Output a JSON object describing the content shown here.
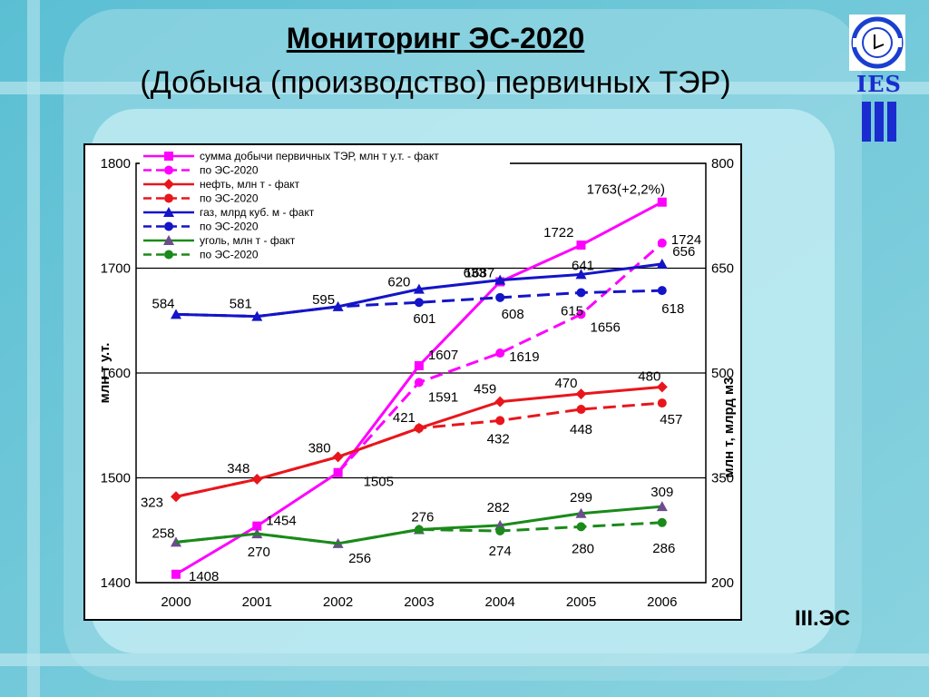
{
  "page": {
    "title": "Мониторинг ЭС-2020",
    "subtitle": "(Добыча (производство) первичных ТЭР)",
    "footer_label": "III.ЭС",
    "logo_text": "IES"
  },
  "colors": {
    "magenta": "#ff00ff",
    "red": "#e8161c",
    "blue": "#1414c8",
    "green": "#1a8a1a",
    "triangle_purple": "#6b4d8c"
  },
  "chart_data": {
    "type": "line",
    "categories": [
      "2000",
      "2001",
      "2002",
      "2003",
      "2004",
      "2005",
      "2006"
    ],
    "y_left": {
      "label": "млн т у.т.",
      "ylim": [
        1400,
        1800
      ],
      "ticks": [
        "1400",
        "1500",
        "1600",
        "1700",
        "1800"
      ]
    },
    "y_right": {
      "label": "млн т, млрд м3",
      "ylim": [
        200,
        800
      ],
      "ticks": [
        "200",
        "350",
        "500",
        "650",
        "800"
      ]
    },
    "grid": "horizontal",
    "legend_position": "top",
    "series": [
      {
        "name": "сумма добычи первичных ТЭР, млн т у.т. - факт",
        "axis": "left",
        "color": "#ff00ff",
        "dash": false,
        "marker": "square",
        "values": [
          1408,
          1454,
          1505,
          1607,
          1687,
          1722,
          1763
        ],
        "labels": [
          "1408",
          "1454",
          "1505",
          "1607",
          "1687",
          "1722",
          "1763(+2,2%)"
        ]
      },
      {
        "name": "по ЭС-2020",
        "axis": "left",
        "color": "#ff00ff",
        "dash": true,
        "marker": "circle",
        "values": [
          null,
          null,
          1505,
          1591,
          1619,
          1656,
          1724
        ],
        "labels": [
          null,
          null,
          null,
          "1591",
          "1619",
          "1656",
          "1724"
        ]
      },
      {
        "name": "нефть, млн т - факт",
        "axis": "right",
        "color": "#e8161c",
        "dash": false,
        "marker": "diamond",
        "values": [
          323,
          348,
          380,
          421,
          459,
          470,
          480
        ],
        "labels": [
          "323",
          "348",
          "380",
          "421",
          "459",
          "470",
          "480"
        ]
      },
      {
        "name": "по ЭС-2020",
        "axis": "right",
        "color": "#e8161c",
        "dash": true,
        "marker": "circle",
        "values": [
          323,
          348,
          380,
          421,
          432,
          448,
          457
        ],
        "labels": [
          null,
          null,
          null,
          null,
          "432",
          "448",
          "457"
        ]
      },
      {
        "name": "газ, млрд куб. м - факт",
        "axis": "right",
        "color": "#1414c8",
        "dash": false,
        "marker": "triangle",
        "values": [
          584,
          581,
          595,
          620,
          633,
          641,
          656
        ],
        "labels": [
          "584",
          "581",
          "595",
          "620",
          "633",
          "641",
          "656"
        ]
      },
      {
        "name": "по ЭС-2020",
        "axis": "right",
        "color": "#1414c8",
        "dash": true,
        "marker": "circle",
        "values": [
          584,
          581,
          595,
          601,
          608,
          615,
          618
        ],
        "labels": [
          null,
          null,
          null,
          "601",
          "608",
          "615",
          "618"
        ]
      },
      {
        "name": "уголь, млн т - факт",
        "axis": "right",
        "color": "#1a8a1a",
        "dash": false,
        "marker": "triangle-purple",
        "values": [
          258,
          270,
          256,
          276,
          282,
          299,
          309
        ],
        "labels": [
          "258",
          "270",
          "256",
          "276",
          "282",
          "299",
          "309"
        ]
      },
      {
        "name": "по ЭС-2020",
        "axis": "right",
        "color": "#1a8a1a",
        "dash": true,
        "marker": "circle",
        "values": [
          258,
          270,
          256,
          276,
          274,
          280,
          286
        ],
        "labels": [
          null,
          null,
          null,
          null,
          "274",
          "280",
          "286"
        ]
      }
    ]
  }
}
